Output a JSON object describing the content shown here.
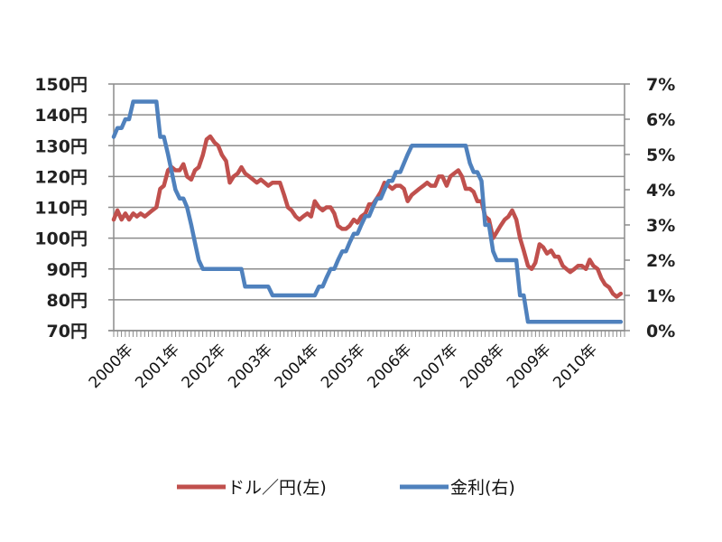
{
  "chart_data": {
    "type": "line",
    "title": "",
    "xlabel": "",
    "ylabel_left": "",
    "ylabel_right": "",
    "x_tick_labels": [
      "2000年",
      "2001年",
      "2002年",
      "2003年",
      "2004年",
      "2005年",
      "2006年",
      "2007年",
      "2008年",
      "2009年",
      "2010年"
    ],
    "x_range": [
      2000.0,
      2011.0
    ],
    "left_axis": {
      "min": 70,
      "max": 150,
      "step": 10,
      "tick_labels": [
        "70円",
        "80円",
        "90円",
        "100円",
        "110円",
        "120円",
        "130円",
        "140円",
        "150円"
      ]
    },
    "right_axis": {
      "min": 0,
      "max": 7,
      "step": 1,
      "tick_labels": [
        "0%",
        "1%",
        "2%",
        "3%",
        "4%",
        "5%",
        "6%",
        "7%"
      ]
    },
    "grid": true,
    "legend_position": "bottom",
    "series": [
      {
        "name": "ドル／円(左)",
        "axis": "left",
        "color": "#c0504d",
        "points": [
          [
            2000.0,
            106
          ],
          [
            2000.08,
            109
          ],
          [
            2000.17,
            106
          ],
          [
            2000.25,
            108
          ],
          [
            2000.33,
            106
          ],
          [
            2000.42,
            108
          ],
          [
            2000.5,
            107
          ],
          [
            2000.58,
            108
          ],
          [
            2000.67,
            107
          ],
          [
            2000.75,
            108
          ],
          [
            2000.83,
            109
          ],
          [
            2000.92,
            110
          ],
          [
            2001.0,
            116
          ],
          [
            2001.08,
            117
          ],
          [
            2001.17,
            122
          ],
          [
            2001.25,
            123
          ],
          [
            2001.33,
            122
          ],
          [
            2001.42,
            122
          ],
          [
            2001.5,
            124
          ],
          [
            2001.58,
            120
          ],
          [
            2001.67,
            119
          ],
          [
            2001.75,
            122
          ],
          [
            2001.83,
            123
          ],
          [
            2001.92,
            127
          ],
          [
            2002.0,
            132
          ],
          [
            2002.08,
            133
          ],
          [
            2002.17,
            131
          ],
          [
            2002.25,
            130
          ],
          [
            2002.33,
            127
          ],
          [
            2002.42,
            125
          ],
          [
            2002.5,
            118
          ],
          [
            2002.58,
            120
          ],
          [
            2002.67,
            121
          ],
          [
            2002.75,
            123
          ],
          [
            2002.83,
            121
          ],
          [
            2002.92,
            120
          ],
          [
            2003.0,
            119
          ],
          [
            2003.08,
            118
          ],
          [
            2003.17,
            119
          ],
          [
            2003.25,
            118
          ],
          [
            2003.33,
            117
          ],
          [
            2003.42,
            118
          ],
          [
            2003.5,
            118
          ],
          [
            2003.58,
            118
          ],
          [
            2003.67,
            114
          ],
          [
            2003.75,
            110
          ],
          [
            2003.83,
            109
          ],
          [
            2003.92,
            107
          ],
          [
            2004.0,
            106
          ],
          [
            2004.08,
            107
          ],
          [
            2004.17,
            108
          ],
          [
            2004.25,
            107
          ],
          [
            2004.33,
            112
          ],
          [
            2004.42,
            110
          ],
          [
            2004.5,
            109
          ],
          [
            2004.58,
            110
          ],
          [
            2004.67,
            110
          ],
          [
            2004.75,
            108
          ],
          [
            2004.83,
            104
          ],
          [
            2004.92,
            103
          ],
          [
            2005.0,
            103
          ],
          [
            2005.08,
            104
          ],
          [
            2005.17,
            106
          ],
          [
            2005.25,
            105
          ],
          [
            2005.33,
            107
          ],
          [
            2005.42,
            108
          ],
          [
            2005.5,
            111
          ],
          [
            2005.58,
            111
          ],
          [
            2005.67,
            113
          ],
          [
            2005.75,
            115
          ],
          [
            2005.83,
            118
          ],
          [
            2005.92,
            117
          ],
          [
            2006.0,
            116
          ],
          [
            2006.08,
            117
          ],
          [
            2006.17,
            117
          ],
          [
            2006.25,
            116
          ],
          [
            2006.33,
            112
          ],
          [
            2006.42,
            114
          ],
          [
            2006.5,
            115
          ],
          [
            2006.58,
            116
          ],
          [
            2006.67,
            117
          ],
          [
            2006.75,
            118
          ],
          [
            2006.83,
            117
          ],
          [
            2006.92,
            117
          ],
          [
            2007.0,
            120
          ],
          [
            2007.08,
            120
          ],
          [
            2007.17,
            117
          ],
          [
            2007.25,
            120
          ],
          [
            2007.33,
            121
          ],
          [
            2007.42,
            122
          ],
          [
            2007.5,
            120
          ],
          [
            2007.58,
            116
          ],
          [
            2007.67,
            116
          ],
          [
            2007.75,
            115
          ],
          [
            2007.83,
            112
          ],
          [
            2007.92,
            112
          ],
          [
            2008.0,
            107
          ],
          [
            2008.08,
            106
          ],
          [
            2008.17,
            100
          ],
          [
            2008.25,
            102
          ],
          [
            2008.33,
            104
          ],
          [
            2008.42,
            106
          ],
          [
            2008.5,
            107
          ],
          [
            2008.58,
            109
          ],
          [
            2008.67,
            106
          ],
          [
            2008.75,
            100
          ],
          [
            2008.83,
            96
          ],
          [
            2008.92,
            91
          ],
          [
            2009.0,
            90
          ],
          [
            2009.08,
            92
          ],
          [
            2009.17,
            98
          ],
          [
            2009.25,
            97
          ],
          [
            2009.33,
            95
          ],
          [
            2009.42,
            96
          ],
          [
            2009.5,
            94
          ],
          [
            2009.58,
            94
          ],
          [
            2009.67,
            91
          ],
          [
            2009.75,
            90
          ],
          [
            2009.83,
            89
          ],
          [
            2009.92,
            90
          ],
          [
            2010.0,
            91
          ],
          [
            2010.08,
            91
          ],
          [
            2010.17,
            90
          ],
          [
            2010.25,
            93
          ],
          [
            2010.33,
            91
          ],
          [
            2010.42,
            90
          ],
          [
            2010.5,
            87
          ],
          [
            2010.58,
            85
          ],
          [
            2010.67,
            84
          ],
          [
            2010.75,
            82
          ],
          [
            2010.83,
            81
          ],
          [
            2010.92,
            82
          ]
        ]
      },
      {
        "name": "金利(右)",
        "axis": "right",
        "color": "#4f81bd",
        "points": [
          [
            2000.0,
            5.5
          ],
          [
            2000.08,
            5.75
          ],
          [
            2000.17,
            5.75
          ],
          [
            2000.25,
            6.0
          ],
          [
            2000.33,
            6.0
          ],
          [
            2000.42,
            6.5
          ],
          [
            2000.5,
            6.5
          ],
          [
            2000.58,
            6.5
          ],
          [
            2000.67,
            6.5
          ],
          [
            2000.75,
            6.5
          ],
          [
            2000.83,
            6.5
          ],
          [
            2000.92,
            6.5
          ],
          [
            2001.0,
            5.5
          ],
          [
            2001.08,
            5.5
          ],
          [
            2001.17,
            5.0
          ],
          [
            2001.25,
            4.5
          ],
          [
            2001.33,
            4.0
          ],
          [
            2001.42,
            3.75
          ],
          [
            2001.5,
            3.75
          ],
          [
            2001.58,
            3.5
          ],
          [
            2001.67,
            3.0
          ],
          [
            2001.75,
            2.5
          ],
          [
            2001.83,
            2.0
          ],
          [
            2001.92,
            1.75
          ],
          [
            2002.0,
            1.75
          ],
          [
            2002.08,
            1.75
          ],
          [
            2002.17,
            1.75
          ],
          [
            2002.25,
            1.75
          ],
          [
            2002.33,
            1.75
          ],
          [
            2002.42,
            1.75
          ],
          [
            2002.5,
            1.75
          ],
          [
            2002.58,
            1.75
          ],
          [
            2002.67,
            1.75
          ],
          [
            2002.75,
            1.75
          ],
          [
            2002.83,
            1.25
          ],
          [
            2002.92,
            1.25
          ],
          [
            2003.0,
            1.25
          ],
          [
            2003.08,
            1.25
          ],
          [
            2003.17,
            1.25
          ],
          [
            2003.25,
            1.25
          ],
          [
            2003.33,
            1.25
          ],
          [
            2003.42,
            1.0
          ],
          [
            2003.5,
            1.0
          ],
          [
            2003.58,
            1.0
          ],
          [
            2003.67,
            1.0
          ],
          [
            2003.75,
            1.0
          ],
          [
            2003.83,
            1.0
          ],
          [
            2003.92,
            1.0
          ],
          [
            2004.0,
            1.0
          ],
          [
            2004.08,
            1.0
          ],
          [
            2004.17,
            1.0
          ],
          [
            2004.25,
            1.0
          ],
          [
            2004.33,
            1.0
          ],
          [
            2004.42,
            1.25
          ],
          [
            2004.5,
            1.25
          ],
          [
            2004.58,
            1.5
          ],
          [
            2004.67,
            1.75
          ],
          [
            2004.75,
            1.75
          ],
          [
            2004.83,
            2.0
          ],
          [
            2004.92,
            2.25
          ],
          [
            2005.0,
            2.25
          ],
          [
            2005.08,
            2.5
          ],
          [
            2005.17,
            2.75
          ],
          [
            2005.25,
            2.75
          ],
          [
            2005.33,
            3.0
          ],
          [
            2005.42,
            3.25
          ],
          [
            2005.5,
            3.25
          ],
          [
            2005.58,
            3.5
          ],
          [
            2005.67,
            3.75
          ],
          [
            2005.75,
            3.75
          ],
          [
            2005.83,
            4.0
          ],
          [
            2005.92,
            4.25
          ],
          [
            2006.0,
            4.25
          ],
          [
            2006.08,
            4.5
          ],
          [
            2006.17,
            4.5
          ],
          [
            2006.25,
            4.75
          ],
          [
            2006.33,
            5.0
          ],
          [
            2006.42,
            5.25
          ],
          [
            2006.5,
            5.25
          ],
          [
            2006.58,
            5.25
          ],
          [
            2006.67,
            5.25
          ],
          [
            2006.75,
            5.25
          ],
          [
            2006.83,
            5.25
          ],
          [
            2006.92,
            5.25
          ],
          [
            2007.0,
            5.25
          ],
          [
            2007.08,
            5.25
          ],
          [
            2007.17,
            5.25
          ],
          [
            2007.25,
            5.25
          ],
          [
            2007.33,
            5.25
          ],
          [
            2007.42,
            5.25
          ],
          [
            2007.5,
            5.25
          ],
          [
            2007.58,
            5.25
          ],
          [
            2007.67,
            4.75
          ],
          [
            2007.75,
            4.5
          ],
          [
            2007.83,
            4.5
          ],
          [
            2007.92,
            4.25
          ],
          [
            2008.0,
            3.0
          ],
          [
            2008.08,
            3.0
          ],
          [
            2008.17,
            2.25
          ],
          [
            2008.25,
            2.0
          ],
          [
            2008.33,
            2.0
          ],
          [
            2008.42,
            2.0
          ],
          [
            2008.5,
            2.0
          ],
          [
            2008.58,
            2.0
          ],
          [
            2008.67,
            2.0
          ],
          [
            2008.75,
            1.0
          ],
          [
            2008.83,
            1.0
          ],
          [
            2008.92,
            0.25
          ],
          [
            2009.0,
            0.25
          ],
          [
            2009.5,
            0.25
          ],
          [
            2010.0,
            0.25
          ],
          [
            2010.5,
            0.25
          ],
          [
            2010.92,
            0.25
          ]
        ]
      }
    ]
  },
  "legend": {
    "items": [
      {
        "label": "ドル／円(左)",
        "color": "#c0504d"
      },
      {
        "label": "金利(右)",
        "color": "#4f81bd"
      }
    ]
  },
  "style": {
    "grid_color": "#8c8c8c",
    "axis_color": "#8c8c8c"
  }
}
